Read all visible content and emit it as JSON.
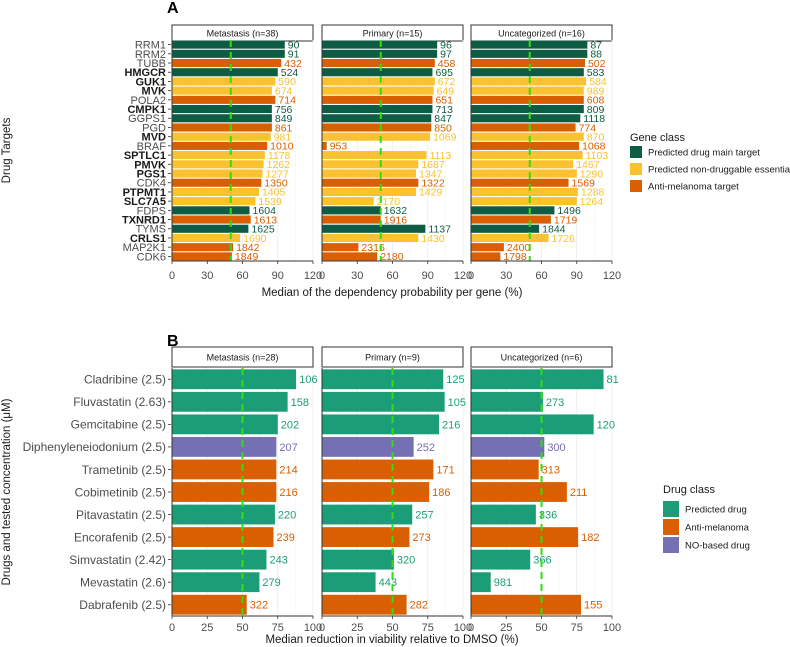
{
  "colors": {
    "predicted_main": "#0f5c45",
    "predicted_nondrug": "#f9c22e",
    "anti_melanoma": "#d95f02",
    "predicted_drug": "#1b9e77",
    "no_based": "#7570b3",
    "threshold": "#33dd11"
  },
  "chart_data": [
    {
      "panel": "A",
      "type": "bar",
      "orientation": "horizontal",
      "ylabel": "Drug Targets",
      "xlabel": "Median of the dependency probability per gene (%)",
      "xlim": [
        0,
        120
      ],
      "xticks": [
        "0",
        "30",
        "60",
        "90",
        "120"
      ],
      "threshold": 50,
      "legend_title": "Gene class",
      "legend_items": [
        "Predicted drug main target",
        "Predicted non-druggable essential",
        "Anti-melanoma target"
      ],
      "categories": [
        "RRM1",
        "RRM2",
        "TUBB",
        "HMGCR",
        "GUK1",
        "MVK",
        "POLA2",
        "CMPK1",
        "GGPS1",
        "PGD",
        "MVD",
        "BRAF",
        "SPTLC1",
        "PMVK",
        "PGS1",
        "CDK4",
        "PTPMT1",
        "SLC7A5",
        "FDPS",
        "TXNRD1",
        "TYMS",
        "CRLS1",
        "MAP2K1",
        "CDK6"
      ],
      "bold": [
        false,
        false,
        false,
        true,
        true,
        true,
        false,
        true,
        false,
        false,
        true,
        false,
        true,
        true,
        true,
        false,
        true,
        true,
        false,
        true,
        false,
        true,
        false,
        false
      ],
      "classes": [
        0,
        0,
        2,
        0,
        1,
        1,
        2,
        0,
        0,
        2,
        1,
        2,
        1,
        1,
        1,
        2,
        1,
        1,
        0,
        2,
        0,
        1,
        2,
        2
      ],
      "facets": [
        {
          "title": "Metastasis (n=38)",
          "values": [
            96,
            96,
            93,
            90,
            88,
            85,
            88,
            85,
            85,
            85,
            84,
            81,
            79,
            78,
            77,
            76,
            74,
            71,
            66,
            67,
            65,
            58,
            52,
            51
          ],
          "labels": [
            "90",
            "91",
            "432",
            "524",
            "590",
            "674",
            "714",
            "756",
            "849",
            "861",
            "981",
            "1010",
            "1178",
            "1262",
            "1277",
            "1350",
            "1405",
            "1539",
            "1604",
            "1613",
            "1625",
            "1690",
            "1842",
            "1849"
          ]
        },
        {
          "title": "Primary (n=15)",
          "values": [
            98,
            98,
            96,
            94,
            96,
            95,
            94,
            94,
            93,
            93,
            92,
            4,
            89,
            82,
            80,
            82,
            80,
            44,
            50,
            50,
            88,
            82,
            31,
            47
          ],
          "labels": [
            "96",
            "97",
            "458",
            "695",
            "672",
            "649",
            "651",
            "713",
            "847",
            "850",
            "1069",
            "953",
            "1113",
            "1687",
            "1347",
            "1322",
            "1429",
            "2170",
            "1632",
            "1916",
            "1137",
            "1430",
            "2316",
            "2180"
          ]
        },
        {
          "title": "Uncategorized (n=16)",
          "values": [
            99,
            99,
            97,
            96,
            98,
            96,
            96,
            96,
            93,
            89,
            96,
            92,
            95,
            87,
            90,
            83,
            91,
            90,
            71,
            68,
            58,
            66,
            28,
            25
          ],
          "labels": [
            "87",
            "88",
            "502",
            "583",
            "584",
            "989",
            "608",
            "809",
            "1118",
            "774",
            "870",
            "1068",
            "1103",
            "1467",
            "1290",
            "1569",
            "1288",
            "1264",
            "1496",
            "1719",
            "1844",
            "1726",
            "2400",
            "1798"
          ]
        }
      ]
    },
    {
      "panel": "B",
      "type": "bar",
      "orientation": "horizontal",
      "ylabel": "Drugs and tested concentration (μM)",
      "xlabel": "Median reduction in viability relative to DMSO (%)",
      "xlim": [
        0,
        100
      ],
      "xticks": [
        "0",
        "25",
        "50",
        "75",
        "100"
      ],
      "threshold": 50,
      "legend_title": "Drug class",
      "legend_items": [
        "Predicted drug",
        "Anti-melanoma",
        "NO-based drug"
      ],
      "categories": [
        "Cladribine (2.5)",
        "Fluvastatin (2.63)",
        "Gemcitabine (2.5)",
        "Diphenyleneiodonium (2.5)",
        "Trametinib (2.5)",
        "Cobimetinib (2.5)",
        "Pitavastatin (2.5)",
        "Encorafenib (2.5)",
        "Simvastatin (2.42)",
        "Mevastatin (2.6)",
        "Dabrafenib (2.5)"
      ],
      "classes": [
        0,
        0,
        0,
        2,
        1,
        1,
        0,
        1,
        0,
        0,
        1
      ],
      "facets": [
        {
          "title": "Metastasis (n=28)",
          "values": [
            88,
            82,
            75,
            74,
            74,
            74,
            73,
            72,
            67,
            62,
            53
          ],
          "labels": [
            "106",
            "158",
            "202",
            "207",
            "214",
            "216",
            "220",
            "239",
            "243",
            "279",
            "322"
          ]
        },
        {
          "title": "Primary (n=9)",
          "values": [
            86,
            87,
            83,
            65,
            79,
            76,
            64,
            62,
            51,
            38,
            60
          ],
          "labels": [
            "125",
            "105",
            "216",
            "252",
            "171",
            "186",
            "257",
            "273",
            "320",
            "443",
            "282"
          ]
        },
        {
          "title": "Uncategorized (n=6)",
          "values": [
            94,
            51,
            87,
            52,
            48,
            68,
            46,
            76,
            42,
            14,
            78
          ],
          "labels": [
            "81",
            "273",
            "120",
            "300",
            "313",
            "211",
            "336",
            "182",
            "366",
            "981",
            "155"
          ]
        }
      ]
    }
  ]
}
